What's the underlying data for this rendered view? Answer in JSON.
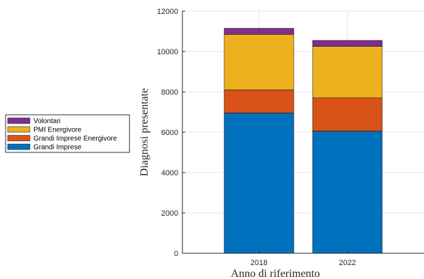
{
  "chart_data": {
    "type": "bar",
    "stacked": true,
    "categories": [
      "2018",
      "2022"
    ],
    "series": [
      {
        "name": "Grandi Imprese",
        "color": "#0072BD",
        "values": [
          6950,
          6050
        ]
      },
      {
        "name": "Grandi Imprese Energivore",
        "color": "#D95319",
        "values": [
          1150,
          1650
        ]
      },
      {
        "name": "PMI Energivore",
        "color": "#EDB120",
        "values": [
          2750,
          2550
        ]
      },
      {
        "name": "Volontari",
        "color": "#7E2F8E",
        "values": [
          300,
          300
        ]
      }
    ],
    "title": "",
    "xlabel": "Anno di riferimento",
    "ylabel": "Diagnosi presentate",
    "ylim": [
      0,
      12000
    ],
    "yticks": [
      0,
      2000,
      4000,
      6000,
      8000,
      10000,
      12000
    ],
    "grid": true,
    "legend_position": "outside-left",
    "legend_order": [
      "Volontari",
      "PMI Energivore",
      "Grandi Imprese Energivore",
      "Grandi Imprese"
    ]
  }
}
